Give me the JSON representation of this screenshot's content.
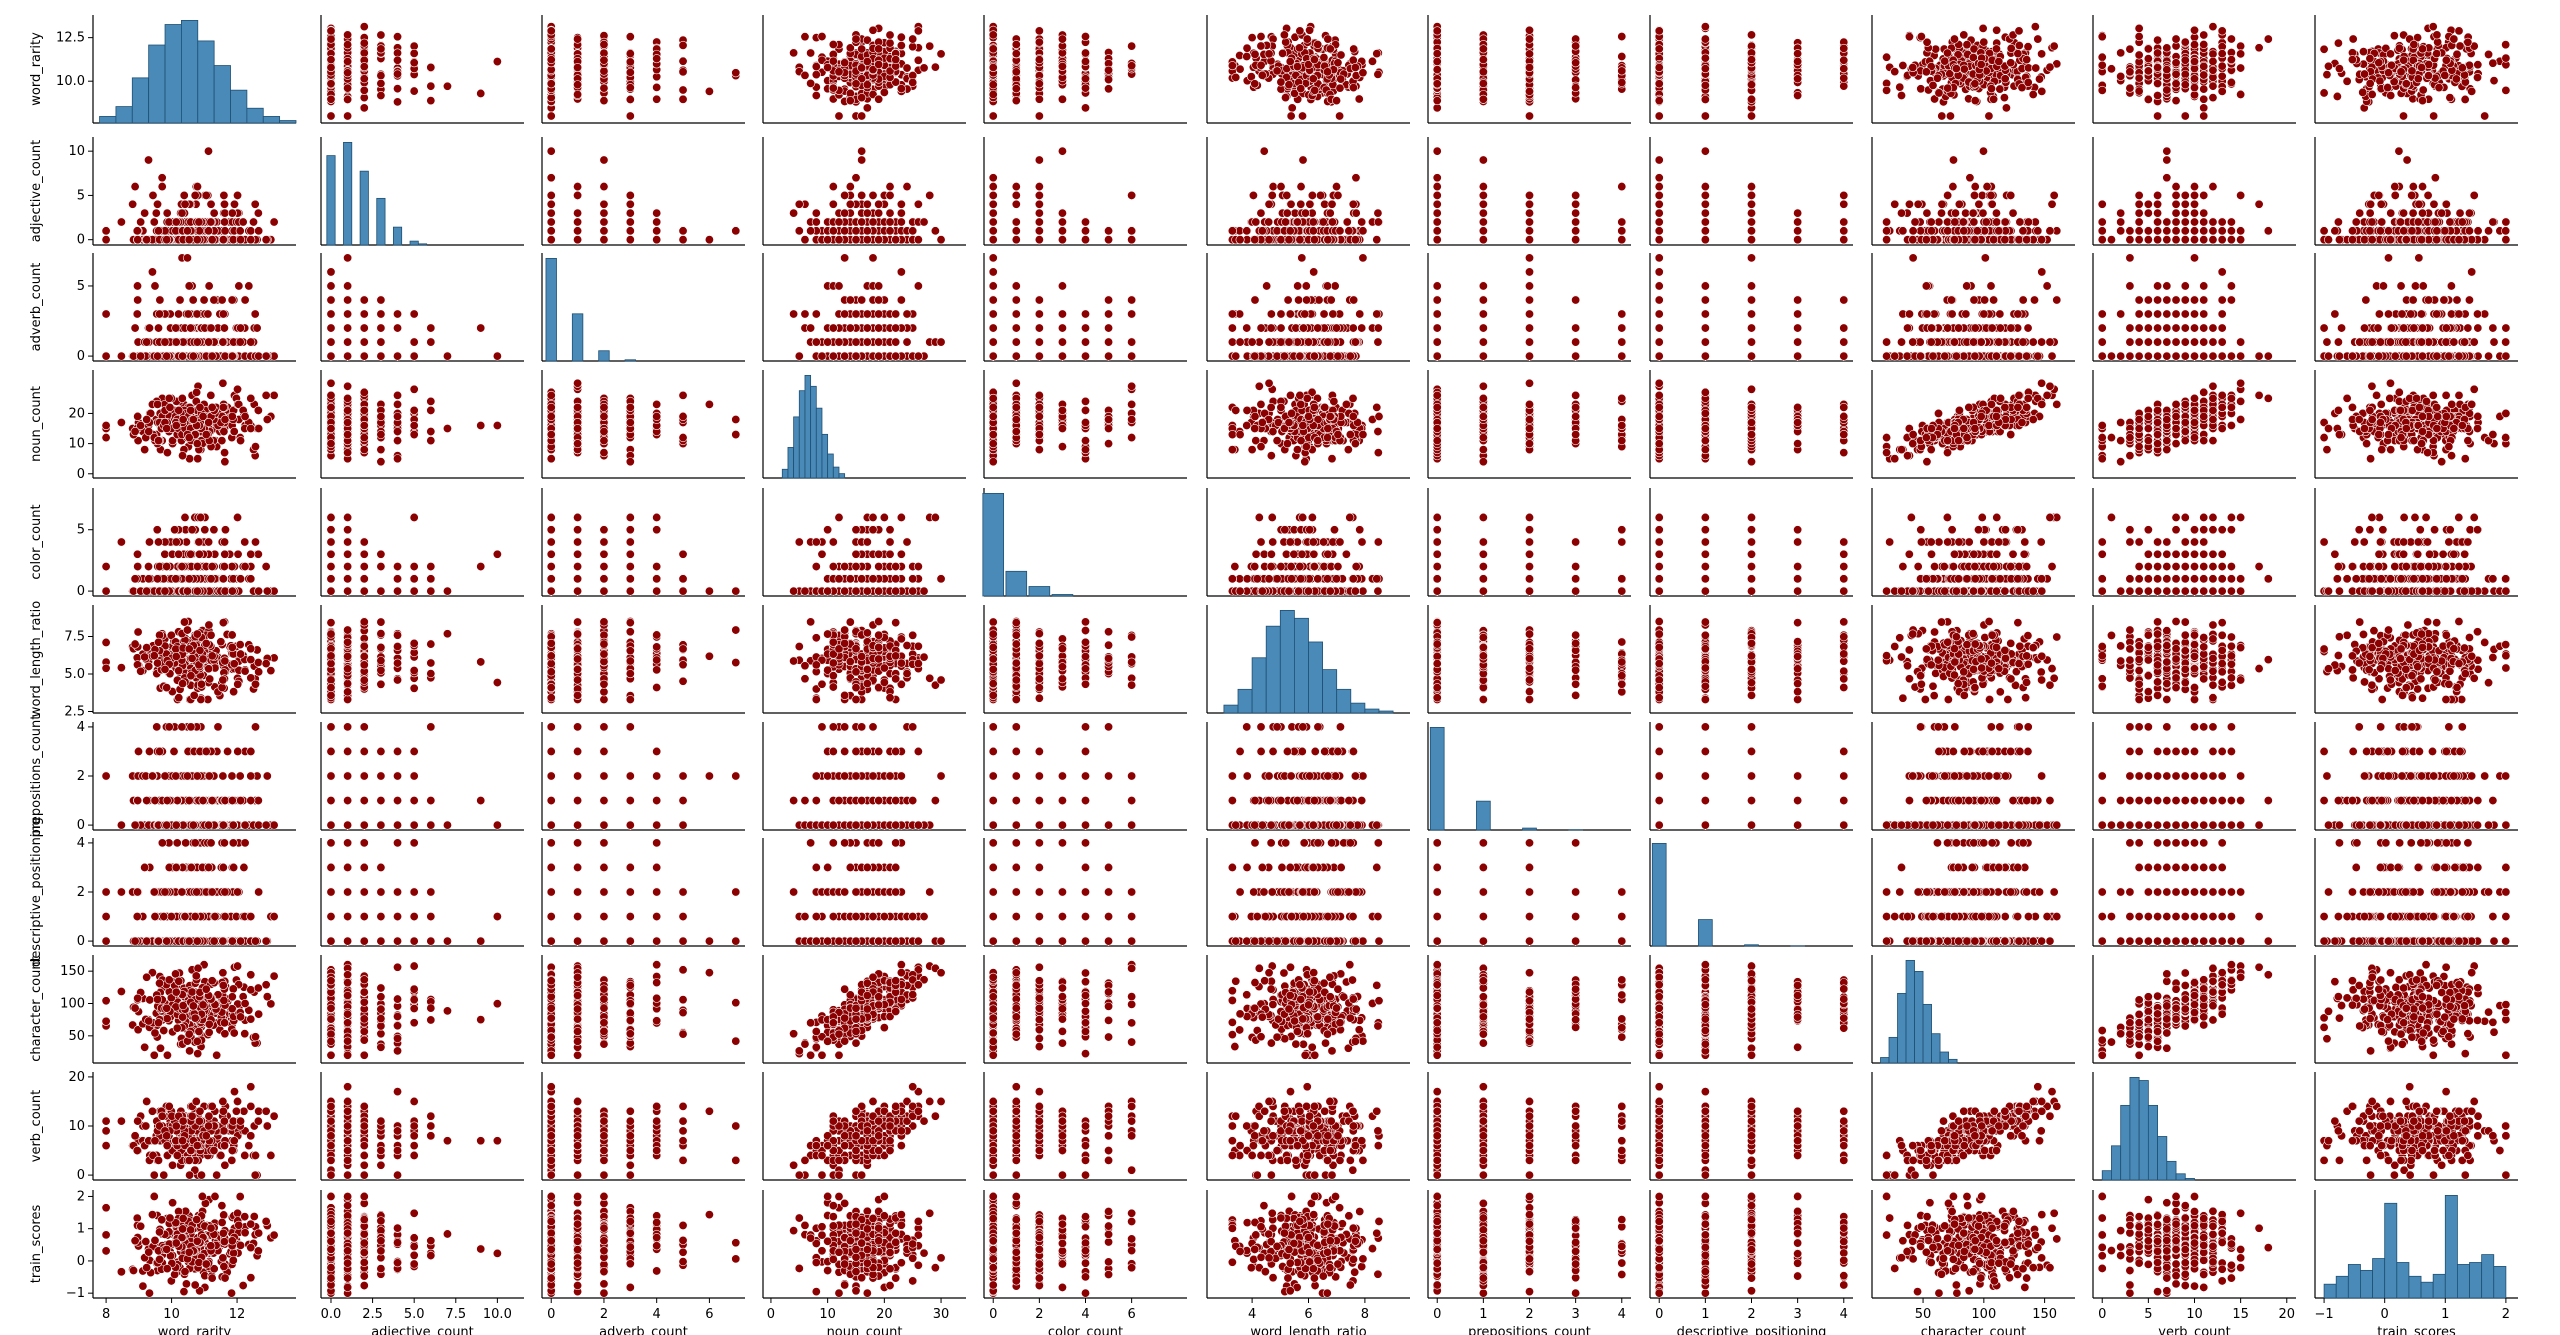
{
  "chart_data": {
    "type": "scatter",
    "subtype": "pairplot",
    "diagonal": "histogram",
    "variables": [
      "word_rarity",
      "adjective_count",
      "adverb_count",
      "noun_count",
      "color_count",
      "word_length_ratio",
      "prepositions_count",
      "descriptive_positioning",
      "character_count",
      "verb_count",
      "train_scores"
    ],
    "colors": {
      "scatter_fill": "#8b0000",
      "scatter_edge": "#ffffff",
      "hist_fill": "#4a8ab8",
      "hist_edge": "#1f4f72"
    },
    "axes": {
      "word_rarity": {
        "range": [
          7.6,
          13.8
        ],
        "ticks": [
          8,
          10,
          12
        ],
        "tick_labels": [
          "8",
          "10",
          "12"
        ],
        "y_ticks": [
          10.0,
          12.5
        ],
        "y_tick_labels": [
          "10.0",
          "12.5"
        ]
      },
      "adjective_count": {
        "range": [
          -0.6,
          11.6
        ],
        "ticks": [
          0,
          2.5,
          5.0,
          7.5,
          10.0
        ],
        "tick_labels": [
          "0.0",
          "2.5",
          "5.0",
          "7.5",
          "10.0"
        ],
        "y_ticks": [
          0,
          5,
          10
        ],
        "y_tick_labels": [
          "0",
          "5",
          "10"
        ]
      },
      "adverb_count": {
        "range": [
          -0.35,
          7.35
        ],
        "ticks": [
          0,
          2,
          4,
          6
        ],
        "tick_labels": [
          "0",
          "2",
          "4",
          "6"
        ],
        "y_ticks": [
          0,
          5
        ],
        "y_tick_labels": [
          "0",
          "5"
        ]
      },
      "noun_count": {
        "range": [
          -1.4,
          34.4
        ],
        "ticks": [
          0,
          10,
          20,
          30
        ],
        "tick_labels": [
          "0",
          "10",
          "20",
          "30"
        ],
        "y_ticks": [
          0,
          10,
          20
        ],
        "y_tick_labels": [
          "0",
          "10",
          "20"
        ]
      },
      "color_count": {
        "range": [
          -0.4,
          8.4
        ],
        "ticks": [
          0,
          2,
          4,
          6
        ],
        "tick_labels": [
          "0",
          "2",
          "4",
          "6"
        ],
        "y_ticks": [
          0,
          5
        ],
        "y_tick_labels": [
          "0",
          "5"
        ]
      },
      "word_length_ratio": {
        "range": [
          2.4,
          9.6
        ],
        "ticks": [
          4,
          6,
          8
        ],
        "tick_labels": [
          "4",
          "6",
          "8"
        ],
        "y_ticks": [
          2.5,
          5.0,
          7.5
        ],
        "y_tick_labels": [
          "2.5",
          "5.0",
          "7.5"
        ]
      },
      "prepositions_count": {
        "range": [
          -0.2,
          4.2
        ],
        "ticks": [
          0,
          1,
          2,
          3,
          4
        ],
        "tick_labels": [
          "0",
          "1",
          "2",
          "3",
          "4"
        ],
        "y_ticks": [
          0,
          2,
          4
        ],
        "y_tick_labels": [
          "0",
          "2",
          "4"
        ]
      },
      "descriptive_positioning": {
        "range": [
          -0.2,
          4.2
        ],
        "ticks": [
          0,
          1,
          2,
          3,
          4
        ],
        "tick_labels": [
          "0",
          "1",
          "2",
          "3",
          "4"
        ],
        "y_ticks": [
          0,
          2,
          4
        ],
        "y_tick_labels": [
          "0",
          "2",
          "4"
        ]
      },
      "character_count": {
        "range": [
          8,
          175
        ],
        "ticks": [
          50,
          100,
          150
        ],
        "tick_labels": [
          "50",
          "100",
          "150"
        ],
        "y_ticks": [
          50,
          100,
          150
        ],
        "y_tick_labels": [
          "50",
          "100",
          "150"
        ]
      },
      "verb_count": {
        "range": [
          -1,
          21
        ],
        "ticks": [
          0,
          5,
          10,
          15,
          20
        ],
        "tick_labels": [
          "0",
          "5",
          "10",
          "15",
          "20"
        ],
        "y_ticks": [
          0,
          10,
          20
        ],
        "y_tick_labels": [
          "0",
          "10",
          "20"
        ]
      },
      "train_scores": {
        "range": [
          -1.15,
          2.2
        ],
        "ticks": [
          -1,
          0,
          1,
          2
        ],
        "tick_labels": [
          "−1",
          "0",
          "1",
          "2"
        ],
        "y_ticks": [
          -1,
          0,
          1,
          2
        ],
        "y_tick_labels": [
          "−1",
          "0",
          "1",
          "2"
        ]
      }
    },
    "histograms": {
      "word_rarity": {
        "edges": [
          7.8,
          8.3,
          8.8,
          9.3,
          9.8,
          10.3,
          10.8,
          11.3,
          11.8,
          12.3,
          12.8,
          13.3,
          13.8
        ],
        "counts": [
          8,
          20,
          55,
          95,
          120,
          125,
          100,
          70,
          40,
          18,
          8,
          3
        ]
      },
      "adjective_count": {
        "edges": [
          -0.25,
          0.25,
          0.75,
          1.25,
          1.75,
          2.25,
          2.75,
          3.25,
          3.75,
          4.25,
          4.75,
          5.25,
          5.75
        ],
        "counts": [
          1150,
          0,
          1320,
          0,
          950,
          0,
          600,
          0,
          230,
          0,
          50,
          15
        ]
      },
      "adverb_count": {
        "edges": [
          -0.2,
          0.2,
          0.8,
          1.2,
          1.8,
          2.2,
          2.8,
          3.2
        ],
        "counts": [
          2500,
          0,
          1150,
          0,
          250,
          0,
          30
        ]
      },
      "noun_count": {
        "edges": [
          2,
          3,
          4,
          5,
          6,
          7,
          8,
          9,
          10,
          11,
          12,
          13
        ],
        "counts": [
          40,
          140,
          280,
          400,
          470,
          420,
          320,
          200,
          110,
          50,
          20
        ]
      },
      "color_count": {
        "edges": [
          -0.45,
          0.45,
          0.55,
          1.45,
          1.55,
          2.45,
          2.55,
          3.45
        ],
        "counts": [
          2700,
          0,
          650,
          0,
          250,
          0,
          40
        ]
      },
      "word_length_ratio": {
        "edges": [
          3.0,
          3.5,
          4.0,
          4.5,
          5.0,
          5.5,
          6.0,
          6.5,
          7.0,
          7.5,
          8.0,
          8.5,
          9.0
        ],
        "counts": [
          20,
          60,
          140,
          220,
          260,
          240,
          180,
          110,
          60,
          25,
          10,
          5
        ]
      },
      "prepositions_count": {
        "edges": [
          -0.15,
          0.15,
          0.85,
          1.15,
          1.85,
          2.15,
          2.85,
          3.15
        ],
        "counts": [
          3200,
          0,
          900,
          0,
          60,
          0,
          8
        ]
      },
      "descriptive_positioning": {
        "edges": [
          -0.15,
          0.15,
          0.85,
          1.15,
          1.85,
          2.15,
          2.85,
          3.15
        ],
        "counts": [
          3300,
          0,
          850,
          0,
          40,
          0,
          5
        ]
      },
      "character_count": {
        "edges": [
          15,
          22,
          29,
          36,
          43,
          50,
          57,
          64,
          71,
          78
        ],
        "counts": [
          15,
          70,
          190,
          280,
          250,
          160,
          80,
          30,
          10
        ]
      },
      "verb_count": {
        "edges": [
          0,
          1,
          2,
          3,
          4,
          5,
          6,
          7,
          8,
          9,
          10
        ],
        "counts": [
          30,
          110,
          240,
          330,
          320,
          240,
          140,
          60,
          20,
          5
        ]
      },
      "train_scores": {
        "edges": [
          -1.0,
          -0.8,
          -0.6,
          -0.4,
          -0.2,
          0.0,
          0.2,
          0.4,
          0.6,
          0.8,
          1.0,
          1.2,
          1.4,
          1.6,
          1.8,
          2.0
        ],
        "counts": [
          70,
          110,
          170,
          140,
          200,
          480,
          180,
          110,
          80,
          120,
          520,
          170,
          180,
          220,
          160
        ]
      }
    }
  }
}
